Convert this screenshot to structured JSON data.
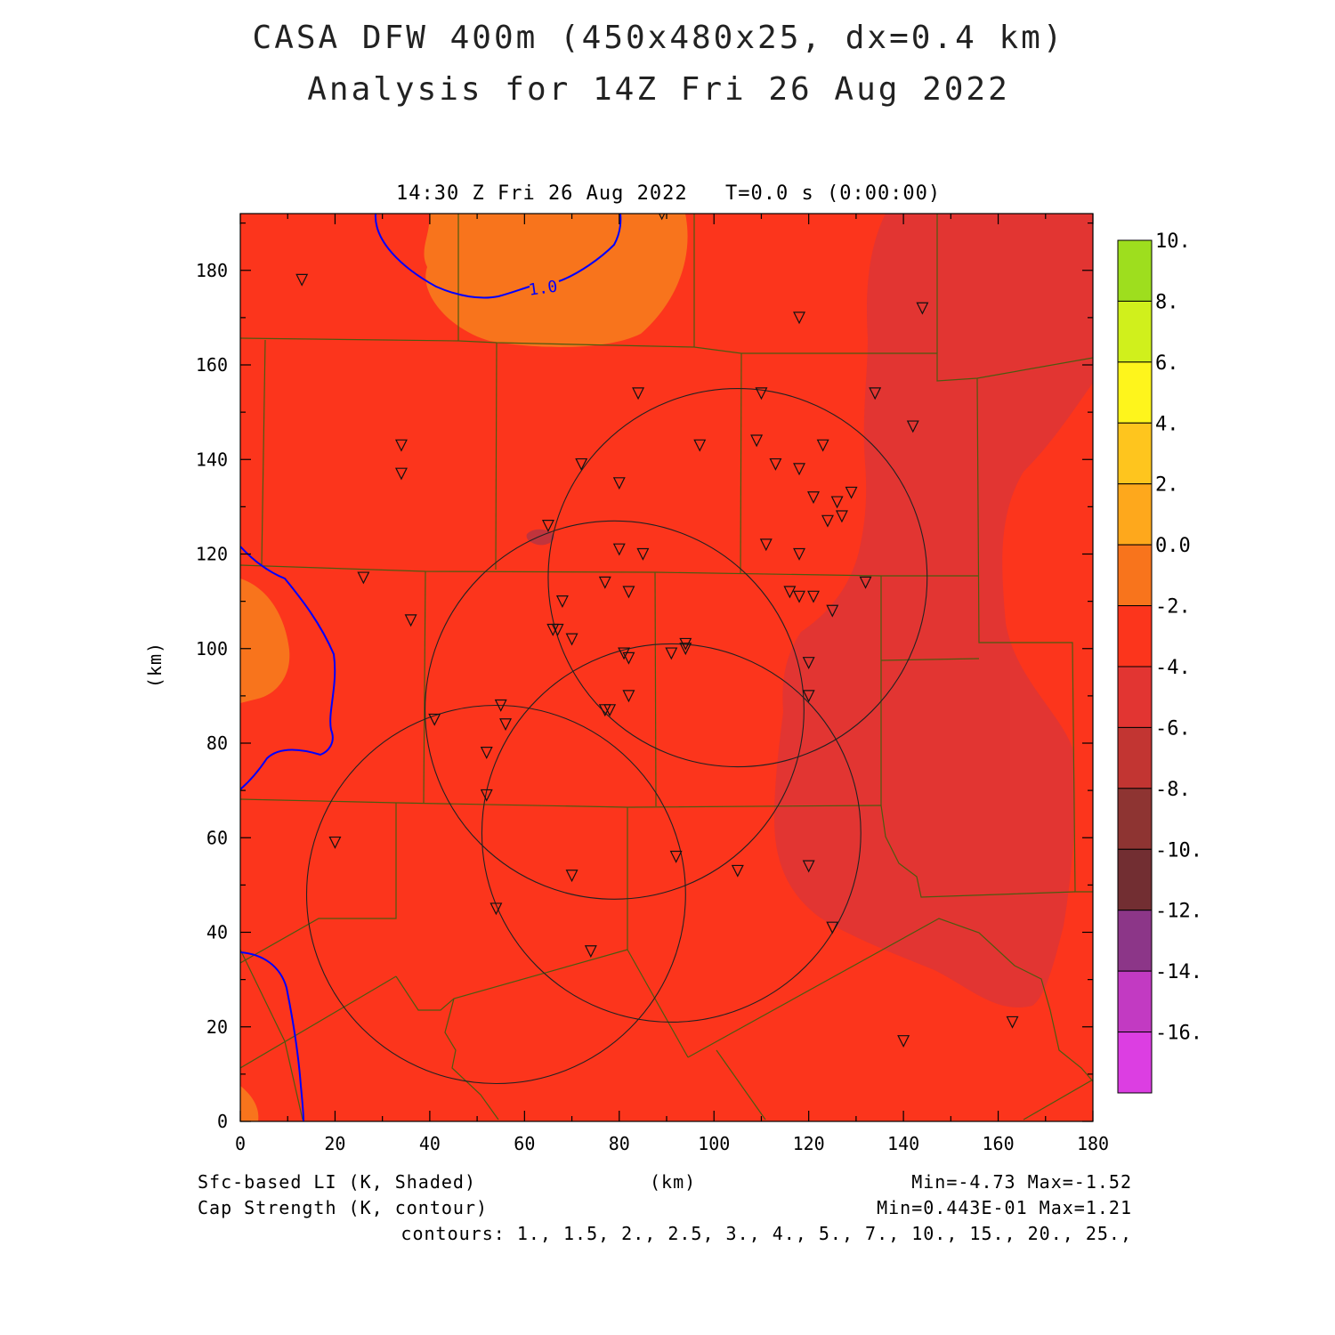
{
  "header": {
    "title_line1": "CASA DFW 400m (450x480x25, dx=0.4 km)",
    "title_line2": "Analysis for 14Z Fri 26 Aug 2022",
    "valid_time": "14:30 Z Fri 26 Aug 2022",
    "forecast_time": "T=0.0 s (0:00:00)"
  },
  "axes": {
    "x_label": "(km)",
    "y_label": "(km)",
    "x_ticks": [
      "0",
      "20",
      "40",
      "60",
      "80",
      "100",
      "120",
      "140",
      "160",
      "180"
    ],
    "y_ticks": [
      "0",
      "20",
      "40",
      "60",
      "80",
      "100",
      "120",
      "140",
      "160",
      "180"
    ],
    "x_range": [
      0,
      180
    ],
    "y_range": [
      0,
      192
    ]
  },
  "colorbar": {
    "labels": [
      "10.",
      "8.",
      "6.",
      "4.",
      "2.",
      "0.0",
      "-2.",
      "-4.",
      "-6.",
      "-8.",
      "-10.",
      "-12.",
      "-14.",
      "-16."
    ],
    "colors": [
      "#9ede1e",
      "#d0f01c",
      "#fef51c",
      "#fec51e",
      "#fea81c",
      "#f8741c",
      "#fc351c",
      "#e23532",
      "#c23532",
      "#8e3432",
      "#722e32",
      "#8c3688",
      "#c23ac2",
      "#dc3ee2"
    ]
  },
  "contour": {
    "label": "1.0",
    "color": "#0000ff"
  },
  "footer": {
    "shaded_field": "Sfc-based LI (K, Shaded)",
    "contour_field": "Cap Strength (K, contour)",
    "x_unit": "(km)",
    "shaded_minmax": "Min=-4.73 Max=-1.52",
    "contour_minmax": "Min=0.443E-01 Max=1.21",
    "contour_levels": "contours: 1., 1.5, 2., 2.5, 3., 4., 5., 7., 10., 15., 20., 25.,"
  },
  "map_data": {
    "stations_km": [
      [
        13,
        178
      ],
      [
        89,
        192
      ],
      [
        118,
        170
      ],
      [
        144,
        172
      ],
      [
        84,
        154
      ],
      [
        110,
        154
      ],
      [
        134,
        154
      ],
      [
        142,
        147
      ],
      [
        34,
        143
      ],
      [
        34,
        137
      ],
      [
        97,
        143
      ],
      [
        109,
        144
      ],
      [
        123,
        143
      ],
      [
        72,
        139
      ],
      [
        80,
        135
      ],
      [
        113,
        139
      ],
      [
        118,
        138
      ],
      [
        121,
        132
      ],
      [
        129,
        133
      ],
      [
        126,
        131
      ],
      [
        127,
        128
      ],
      [
        124,
        127
      ],
      [
        65,
        126
      ],
      [
        111,
        122
      ],
      [
        80,
        121
      ],
      [
        85,
        120
      ],
      [
        118,
        120
      ],
      [
        26,
        115
      ],
      [
        77,
        114
      ],
      [
        82,
        112
      ],
      [
        116,
        112
      ],
      [
        118,
        111
      ],
      [
        121,
        111
      ],
      [
        132,
        114
      ],
      [
        36,
        106
      ],
      [
        68,
        110
      ],
      [
        125,
        108
      ],
      [
        67,
        104
      ],
      [
        66,
        104
      ],
      [
        70,
        102
      ],
      [
        94,
        101
      ],
      [
        94,
        100
      ],
      [
        81,
        99
      ],
      [
        82,
        98
      ],
      [
        91,
        99
      ],
      [
        120,
        97
      ],
      [
        82,
        90
      ],
      [
        120,
        90
      ],
      [
        78,
        87
      ],
      [
        77,
        87
      ],
      [
        41,
        85
      ],
      [
        55,
        88
      ],
      [
        56,
        84
      ],
      [
        52,
        78
      ],
      [
        52,
        69
      ],
      [
        20,
        59
      ],
      [
        92,
        56
      ],
      [
        120,
        54
      ],
      [
        105,
        53
      ],
      [
        70,
        52
      ],
      [
        54,
        45
      ],
      [
        125,
        41
      ],
      [
        74,
        36
      ],
      [
        140,
        17
      ],
      [
        163,
        21
      ]
    ],
    "radar_rings_km": [
      {
        "cx": 105,
        "cy": 115,
        "r": 40
      },
      {
        "cx": 79,
        "cy": 87,
        "r": 40
      },
      {
        "cx": 91,
        "cy": 61,
        "r": 40
      },
      {
        "cx": 54,
        "cy": 48,
        "r": 40
      }
    ]
  }
}
